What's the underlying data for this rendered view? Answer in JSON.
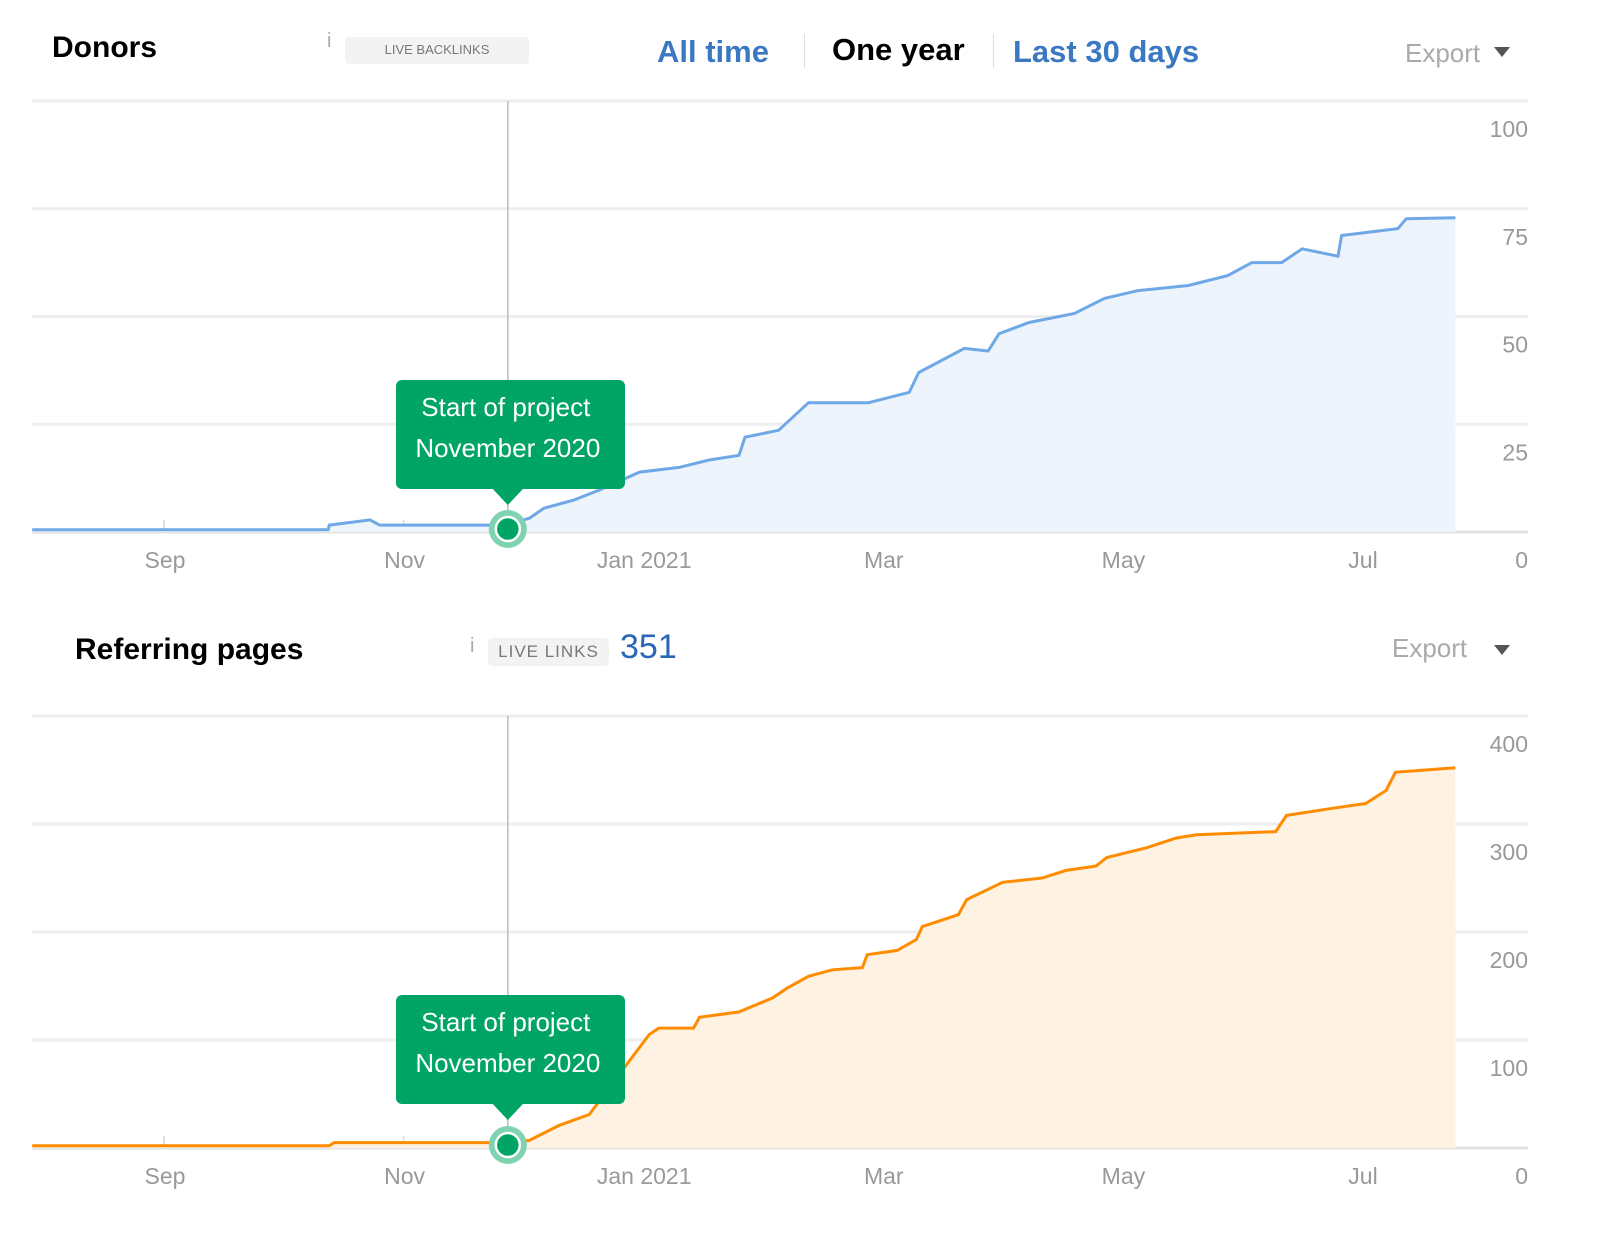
{
  "header1": {
    "title": "Donors",
    "info": "i",
    "badge": "LIVE BACKLINKS",
    "ranges": [
      "All time",
      "One year",
      "Last 30 days"
    ],
    "selected_range": "One year",
    "export": "Export"
  },
  "header2": {
    "title": "Referring pages",
    "info": "i",
    "badge": "LIVE LINKS",
    "count": "351",
    "export": "Export"
  },
  "annotation": {
    "line1": "Start of project",
    "line2": "November 2020"
  },
  "colors": {
    "donors": "#6fa8e6",
    "donors_fill": "#eef4fc",
    "pages": "#ff8c00",
    "pages_fill": "#fef2e3",
    "annotation": "#00a565"
  },
  "chart_data": [
    {
      "type": "area",
      "title": "Donors",
      "x_unit": "months since Sep 2020",
      "xticks": [
        {
          "m": 0,
          "label": "Sep"
        },
        {
          "m": 2,
          "label": "Nov"
        },
        {
          "m": 4,
          "label": "Jan 2021"
        },
        {
          "m": 6,
          "label": "Mar"
        },
        {
          "m": 8,
          "label": "May"
        },
        {
          "m": 10,
          "label": "Jul"
        }
      ],
      "yticks": [
        0,
        25,
        50,
        75,
        100
      ],
      "ylim": [
        0,
        100
      ],
      "annotation_m": 2.87,
      "points": [
        [
          -1.1,
          0.5
        ],
        [
          1.37,
          0.5
        ],
        [
          1.38,
          1.6
        ],
        [
          1.72,
          2.8
        ],
        [
          1.8,
          1.6
        ],
        [
          2.84,
          1.6
        ],
        [
          3.05,
          3.2
        ],
        [
          3.17,
          5.5
        ],
        [
          3.42,
          7.4
        ],
        [
          3.63,
          9.7
        ],
        [
          3.97,
          13.9
        ],
        [
          4.3,
          15
        ],
        [
          4.55,
          16.7
        ],
        [
          4.8,
          17.8
        ],
        [
          4.85,
          22
        ],
        [
          5.13,
          23.6
        ],
        [
          5.38,
          30
        ],
        [
          5.88,
          30
        ],
        [
          6.22,
          32.4
        ],
        [
          6.3,
          37
        ],
        [
          6.68,
          42.6
        ],
        [
          6.88,
          42
        ],
        [
          6.97,
          46
        ],
        [
          7.22,
          48.6
        ],
        [
          7.6,
          50.7
        ],
        [
          7.85,
          54.2
        ],
        [
          8.13,
          56
        ],
        [
          8.55,
          57.2
        ],
        [
          8.88,
          59.5
        ],
        [
          9.08,
          62.5
        ],
        [
          9.33,
          62.5
        ],
        [
          9.5,
          65.7
        ],
        [
          9.8,
          64
        ],
        [
          9.83,
          68.8
        ],
        [
          10.3,
          70.4
        ],
        [
          10.37,
          72.7
        ],
        [
          10.78,
          72.9
        ]
      ]
    },
    {
      "type": "area",
      "title": "Referring pages",
      "x_unit": "months since Sep 2020",
      "xticks": [
        {
          "m": 0,
          "label": "Sep"
        },
        {
          "m": 2,
          "label": "Nov"
        },
        {
          "m": 4,
          "label": "Jan 2021"
        },
        {
          "m": 6,
          "label": "Mar"
        },
        {
          "m": 8,
          "label": "May"
        },
        {
          "m": 10,
          "label": "Jul"
        }
      ],
      "yticks": [
        0,
        100,
        200,
        300,
        400
      ],
      "ylim": [
        0,
        400
      ],
      "annotation_m": 2.87,
      "points": [
        [
          -1.1,
          2
        ],
        [
          1.38,
          2
        ],
        [
          1.42,
          5
        ],
        [
          2.84,
          5
        ],
        [
          3.05,
          7
        ],
        [
          3.3,
          21
        ],
        [
          3.55,
          31
        ],
        [
          3.67,
          49
        ],
        [
          4.05,
          105
        ],
        [
          4.13,
          111
        ],
        [
          4.42,
          111
        ],
        [
          4.47,
          121
        ],
        [
          4.8,
          126
        ],
        [
          5.08,
          139
        ],
        [
          5.2,
          148
        ],
        [
          5.38,
          159
        ],
        [
          5.58,
          165
        ],
        [
          5.83,
          167
        ],
        [
          5.87,
          179
        ],
        [
          6.12,
          183
        ],
        [
          6.28,
          193
        ],
        [
          6.33,
          205
        ],
        [
          6.63,
          216
        ],
        [
          6.7,
          230
        ],
        [
          7,
          246
        ],
        [
          7.33,
          250
        ],
        [
          7.53,
          257
        ],
        [
          7.78,
          261
        ],
        [
          7.87,
          269
        ],
        [
          8.2,
          278
        ],
        [
          8.45,
          287
        ],
        [
          8.62,
          290
        ],
        [
          9.28,
          293
        ],
        [
          9.37,
          308
        ],
        [
          9.78,
          315
        ],
        [
          10.03,
          319
        ],
        [
          10.2,
          331
        ],
        [
          10.28,
          348
        ],
        [
          10.78,
          352
        ]
      ]
    }
  ]
}
